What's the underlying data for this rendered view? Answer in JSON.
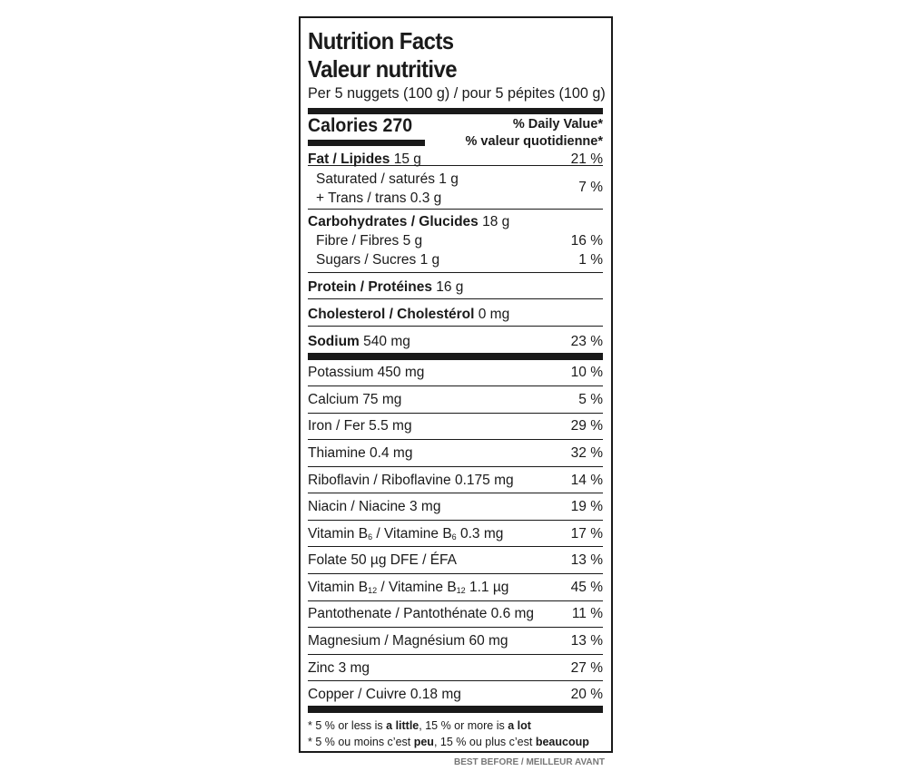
{
  "title_en": "Nutrition Facts",
  "title_fr": "Valeur nutritive",
  "serving": "Per 5 nuggets (100 g) / pour 5 pépites (100 g)",
  "calories": "Calories 270",
  "dv_en": "% Daily Value*",
  "dv_fr": "% valeur quotidienne*",
  "fat": {
    "name": "Fat / Lipides",
    "amount": " 15 g",
    "pct": "21 %"
  },
  "saturated": {
    "text": "Saturated / saturés 1 g"
  },
  "trans": {
    "text": "+ Trans / trans 0.3 g",
    "pct": "7 %"
  },
  "carbs": {
    "name": "Carbohydrates / Glucides",
    "amount": " 18 g"
  },
  "fibre": {
    "text": "Fibre / Fibres 5 g",
    "pct": "16 %"
  },
  "sugars": {
    "text": "Sugars / Sucres 1 g",
    "pct": "1 %"
  },
  "protein": {
    "name": "Protein / Protéines",
    "amount": " 16 g"
  },
  "cholesterol": {
    "name": "Cholesterol / Cholestérol",
    "amount": " 0 mg"
  },
  "sodium": {
    "name": "Sodium",
    "amount": " 540 mg",
    "pct": "23 %"
  },
  "minerals": [
    {
      "text": "Potassium 450 mg",
      "pct": "10 %"
    },
    {
      "text": "Calcium 75 mg",
      "pct": "5 %"
    },
    {
      "text": "Iron / Fer 5.5 mg",
      "pct": "29 %"
    },
    {
      "text": "Thiamine 0.4 mg",
      "pct": "32 %"
    },
    {
      "text": "Riboflavin / Riboflavine 0.175 mg",
      "pct": "14 %"
    },
    {
      "text": "Niacin / Niacine 3 mg",
      "pct": "19 %"
    },
    {
      "text_a": "Vitamin B",
      "sub_a": "6",
      "text_b": " / Vitamine B",
      "sub_b": "6",
      "text_c": " 0.3 mg",
      "pct": "17 %"
    },
    {
      "text": "Folate 50 µg DFE / ÉFA",
      "pct": "13 %"
    },
    {
      "text_a": "Vitamin B",
      "sub_a": "12",
      "text_b": " / Vitamine B",
      "sub_b": "12",
      "text_c": " 1.1 µg",
      "pct": "45 %"
    },
    {
      "text": "Pantothenate / Pantothénate 0.6 mg",
      "pct": "11 %"
    },
    {
      "text": "Magnesium / Magnésium 60 mg",
      "pct": "13 %"
    },
    {
      "text": "Zinc 3 mg",
      "pct": "27 %"
    },
    {
      "text": "Copper / Cuivre 0.18 mg",
      "pct": "20 %"
    }
  ],
  "footnote_en": {
    "a": "* 5 % or less is ",
    "b": "a little",
    "c": ", 15 % or more is ",
    "d": "a lot"
  },
  "footnote_fr": {
    "a": "* 5 % ou moins c’est ",
    "b": "peu",
    "c": ", 15 % ou plus c’est ",
    "d": "beaucoup"
  },
  "cutoff_text": "BEST BEFORE / MEILLEUR AVANT"
}
